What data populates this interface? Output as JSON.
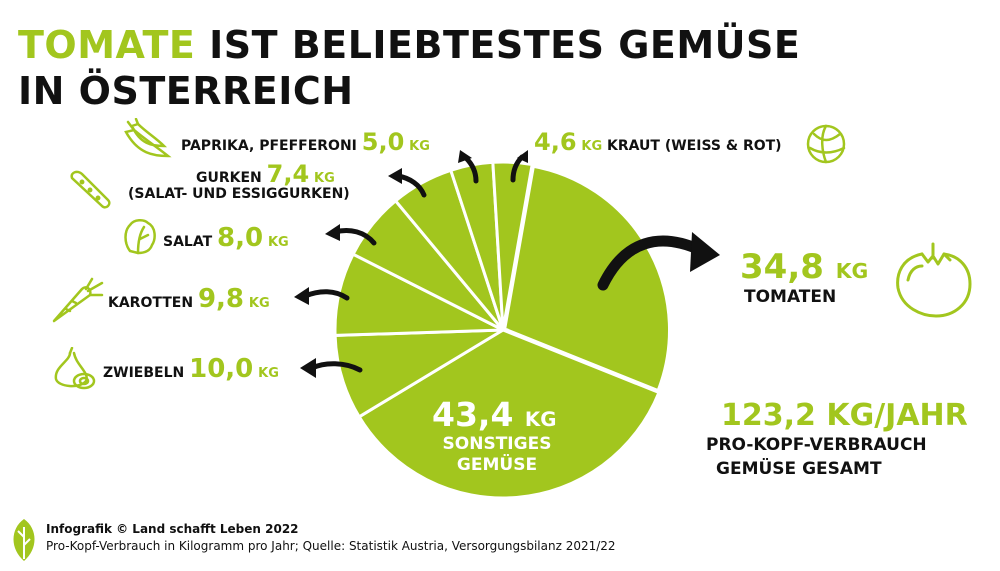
{
  "title": {
    "highlight": "TOMATE",
    "rest1": "IST BELIEBTESTES GEMÜSE",
    "rest2": "IN ÖSTERREICH"
  },
  "unit": "KG",
  "chart_data": {
    "type": "pie",
    "total": {
      "value": "123,2 KG/JAHR",
      "label1": "PRO-KOPF-VERBRAUCH",
      "label2": "GEMÜSE GESAMT"
    },
    "slices": [
      {
        "name": "TOMATEN",
        "value": 34.8,
        "label": "34,8",
        "color": "#a2c61e"
      },
      {
        "name": "SONSTIGES GEMÜSE",
        "value": 43.4,
        "label": "43,4",
        "color": "#a2c61e"
      },
      {
        "name": "ZWIEBELN",
        "value": 10.0,
        "label": "10,0",
        "color": "#a2c61e"
      },
      {
        "name": "KAROTTEN",
        "value": 9.8,
        "label": "9,8",
        "color": "#a2c61e"
      },
      {
        "name": "SALAT",
        "value": 8.0,
        "label": "8,0",
        "color": "#a2c61e"
      },
      {
        "name": "GURKEN",
        "sub": "(SALAT- UND ESSIGGURKEN)",
        "value": 7.4,
        "label": "7,4",
        "color": "#a2c61e"
      },
      {
        "name": "PAPRIKA, PFEFFERONI",
        "value": 5.0,
        "label": "5,0",
        "color": "#a2c61e"
      },
      {
        "name": "KRAUT (WEISS & ROT)",
        "value": 4.6,
        "label": "4,6",
        "color": "#a2c61e"
      }
    ]
  },
  "colors": {
    "accent": "#a2c61e",
    "text": "#111111"
  },
  "icons": [
    "chili-pepper-icon",
    "cucumber-icon",
    "lettuce-icon",
    "carrot-icon",
    "onion-icon",
    "cabbage-icon",
    "tomato-icon",
    "leaf-logo-icon"
  ],
  "footer": {
    "line1": "Infografik © Land schafft Leben 2022",
    "line2": "Pro-Kopf-Verbrauch in Kilogramm pro Jahr; Quelle: Statistik Austria, Versorgungsbilanz 2021/22"
  }
}
